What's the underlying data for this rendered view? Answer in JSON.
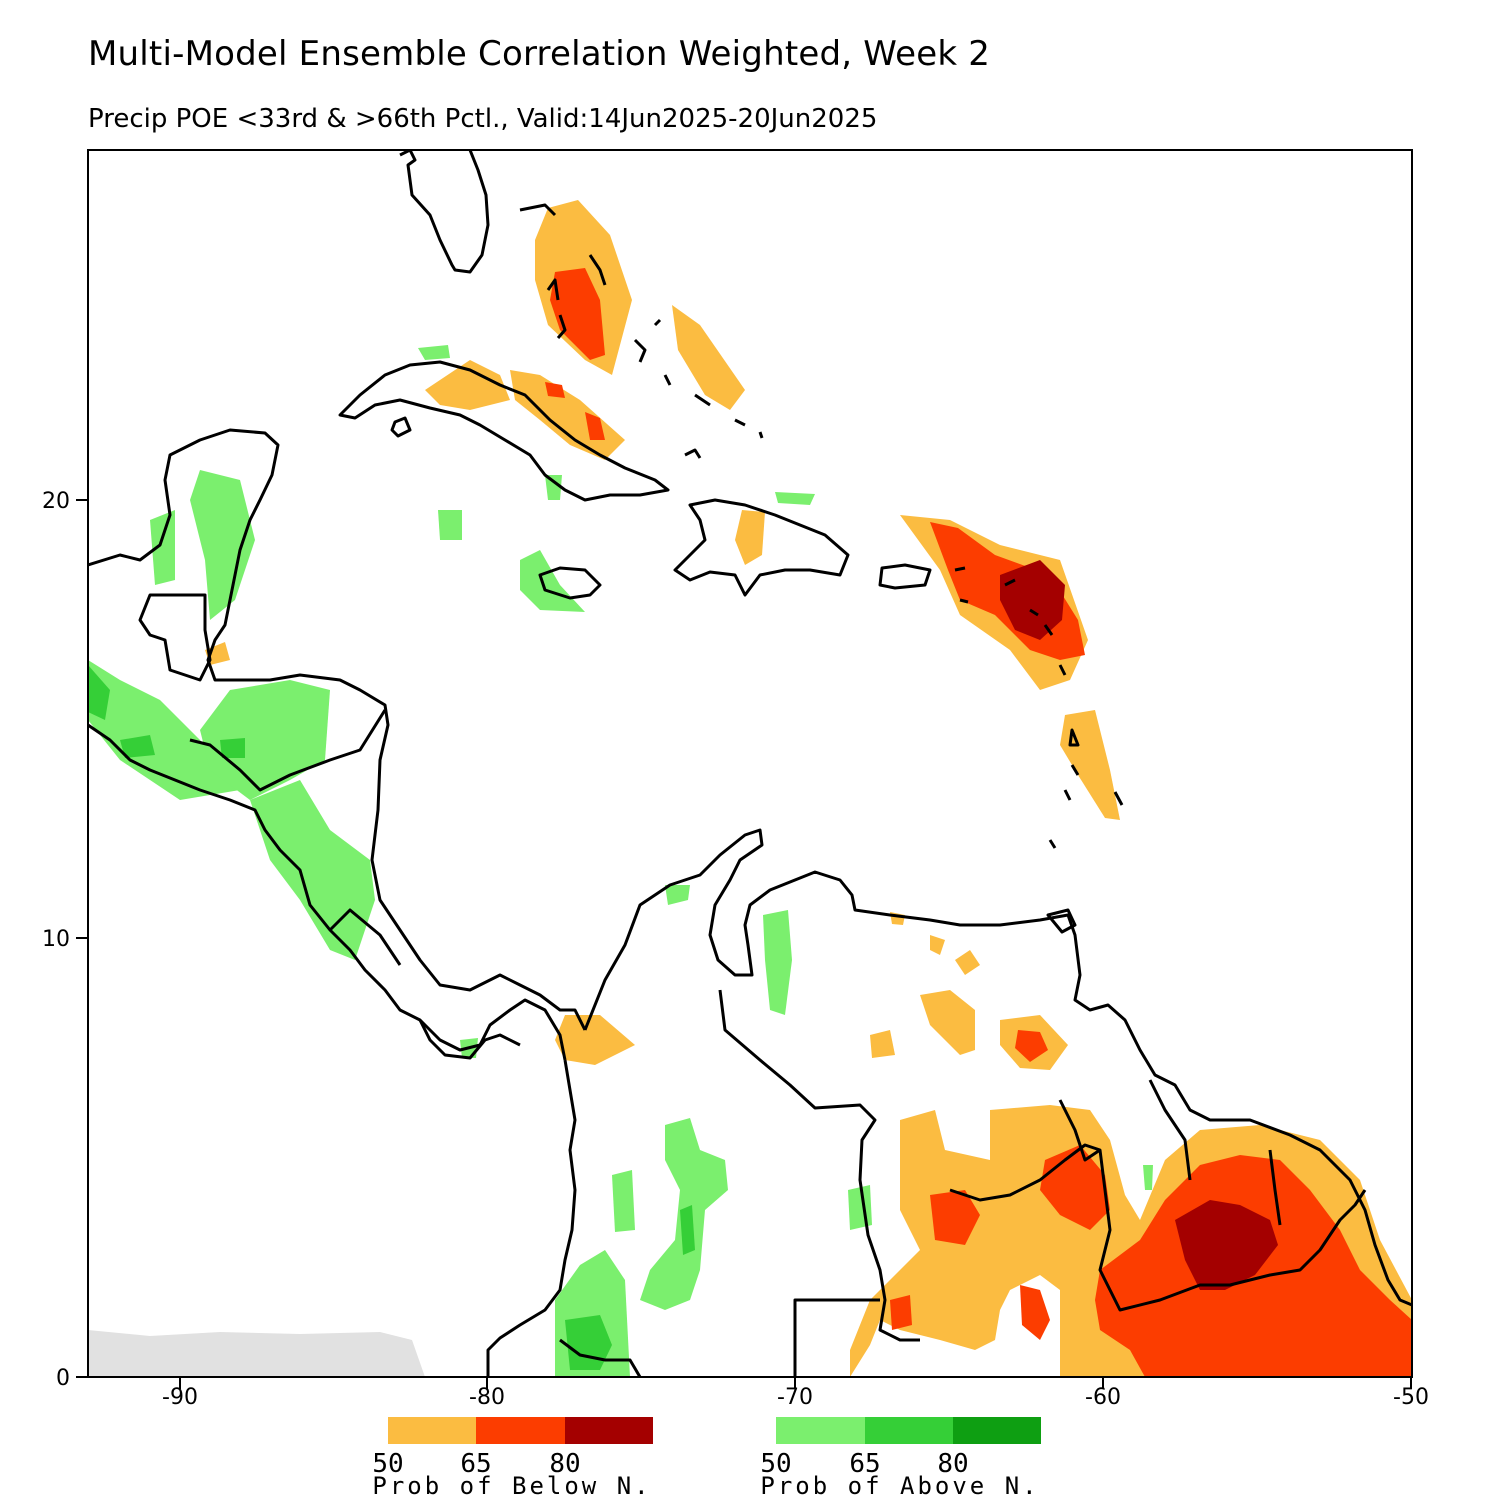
{
  "title": "Multi-Model Ensemble Correlation Weighted, Week 2",
  "subtitle": "Precip POE <33rd & >66th Pctl., Valid:14Jun2025-20Jun2025",
  "axes": {
    "x_ticks": [
      "-90",
      "-80",
      "-70",
      "-60",
      "-50"
    ],
    "y_ticks": [
      "20",
      "10",
      "0"
    ]
  },
  "legend_below": {
    "caption": "Prob of Below N.",
    "levels": [
      "50",
      "65",
      "80"
    ],
    "colors": [
      "#fbbc41",
      "#fc3d00",
      "#a40000"
    ]
  },
  "legend_above": {
    "caption": "Prob of Above N.",
    "levels": [
      "50",
      "65",
      "80"
    ],
    "colors": [
      "#7bef6e",
      "#35cf37",
      "#0e9f12"
    ]
  },
  "map_colors": {
    "coastline": "#000000",
    "missing": "#e1e1e1"
  }
}
